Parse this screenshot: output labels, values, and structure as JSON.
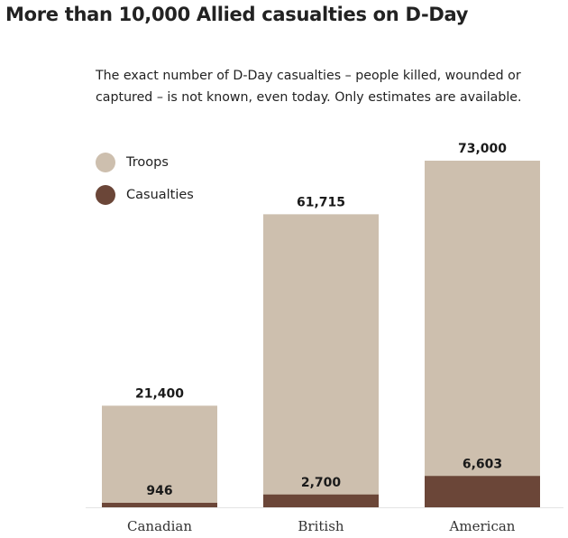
{
  "title": "More than 10,000 Allied casualties on D-Day",
  "subtitle": "The exact number of D-Day casualties – people killed, wounded or captured – is not known, even today. Only estimates are available.",
  "legend": [
    {
      "label": "Troops",
      "color": "#cdbfae"
    },
    {
      "label": "Casualties",
      "color": "#6b4638"
    }
  ],
  "chart_data": {
    "type": "bar",
    "title": "More than 10,000 Allied casualties on D-Day",
    "categories": [
      "Canadian",
      "British",
      "American"
    ],
    "series": [
      {
        "name": "Troops",
        "color": "#cdbfae",
        "values": [
          21400,
          61715,
          73000
        ],
        "labels": [
          "21,400",
          "61,715",
          "73,000"
        ]
      },
      {
        "name": "Casualties",
        "color": "#6b4638",
        "values": [
          946,
          2700,
          6603
        ],
        "labels": [
          "946",
          "2,700",
          "6,603"
        ]
      }
    ],
    "overlap": true,
    "xlabel": "",
    "ylabel": "",
    "ylim": [
      0,
      73000
    ],
    "grid": false,
    "legend_position": "top-left"
  }
}
